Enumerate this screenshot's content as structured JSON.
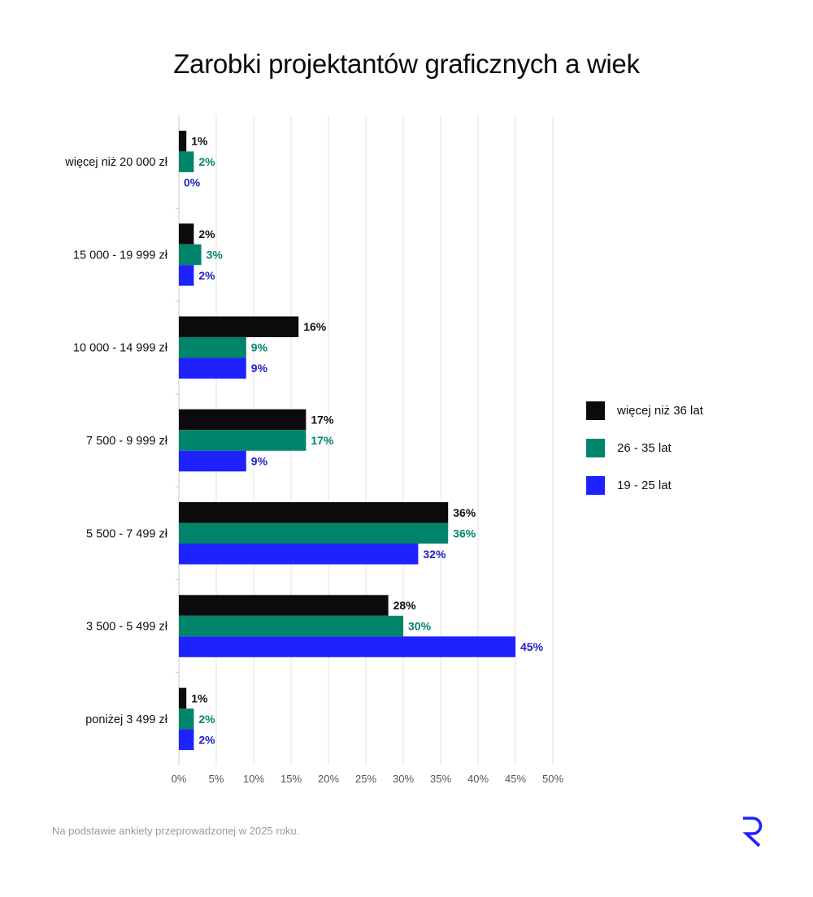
{
  "chart_data": {
    "type": "bar",
    "orientation": "horizontal",
    "title": "Zarobki projektantów graficznych a wiek",
    "categories": [
      "więcej niż 20 000 zł",
      "15 000 - 19 999 zł",
      "10 000 - 14 999 zł",
      "7 500 - 9 999 zł",
      "5 500 - 7 499 zł",
      "3 500 - 5 499 zł",
      "poniżej 3 499 zł"
    ],
    "series": [
      {
        "name": "więcej niż 36 lat",
        "color": "#0c0a0d",
        "label_color": "#111111",
        "values": [
          1,
          2,
          16,
          17,
          36,
          28,
          1
        ]
      },
      {
        "name": "26 - 35 lat",
        "color": "#00856a",
        "label_color": "#00856a",
        "values": [
          2,
          3,
          9,
          17,
          36,
          30,
          2
        ]
      },
      {
        "name": "19 - 25 lat",
        "color": "#1e22ff",
        "label_color": "#2022c4",
        "values": [
          0,
          2,
          9,
          9,
          32,
          45,
          2
        ]
      }
    ],
    "value_suffix": "%",
    "xlim": [
      0,
      50
    ],
    "x_ticks": [
      "0%",
      "5%",
      "10%",
      "15%",
      "20%",
      "25%",
      "30%",
      "35%",
      "40%",
      "45%",
      "50%"
    ],
    "xlabel": "",
    "ylabel": "",
    "grid": "vertical",
    "legend_position": "right"
  },
  "footnote": "Na podstawie ankiety przeprowadzonej w 2025 roku.",
  "logo_icon": "r-logo-icon"
}
